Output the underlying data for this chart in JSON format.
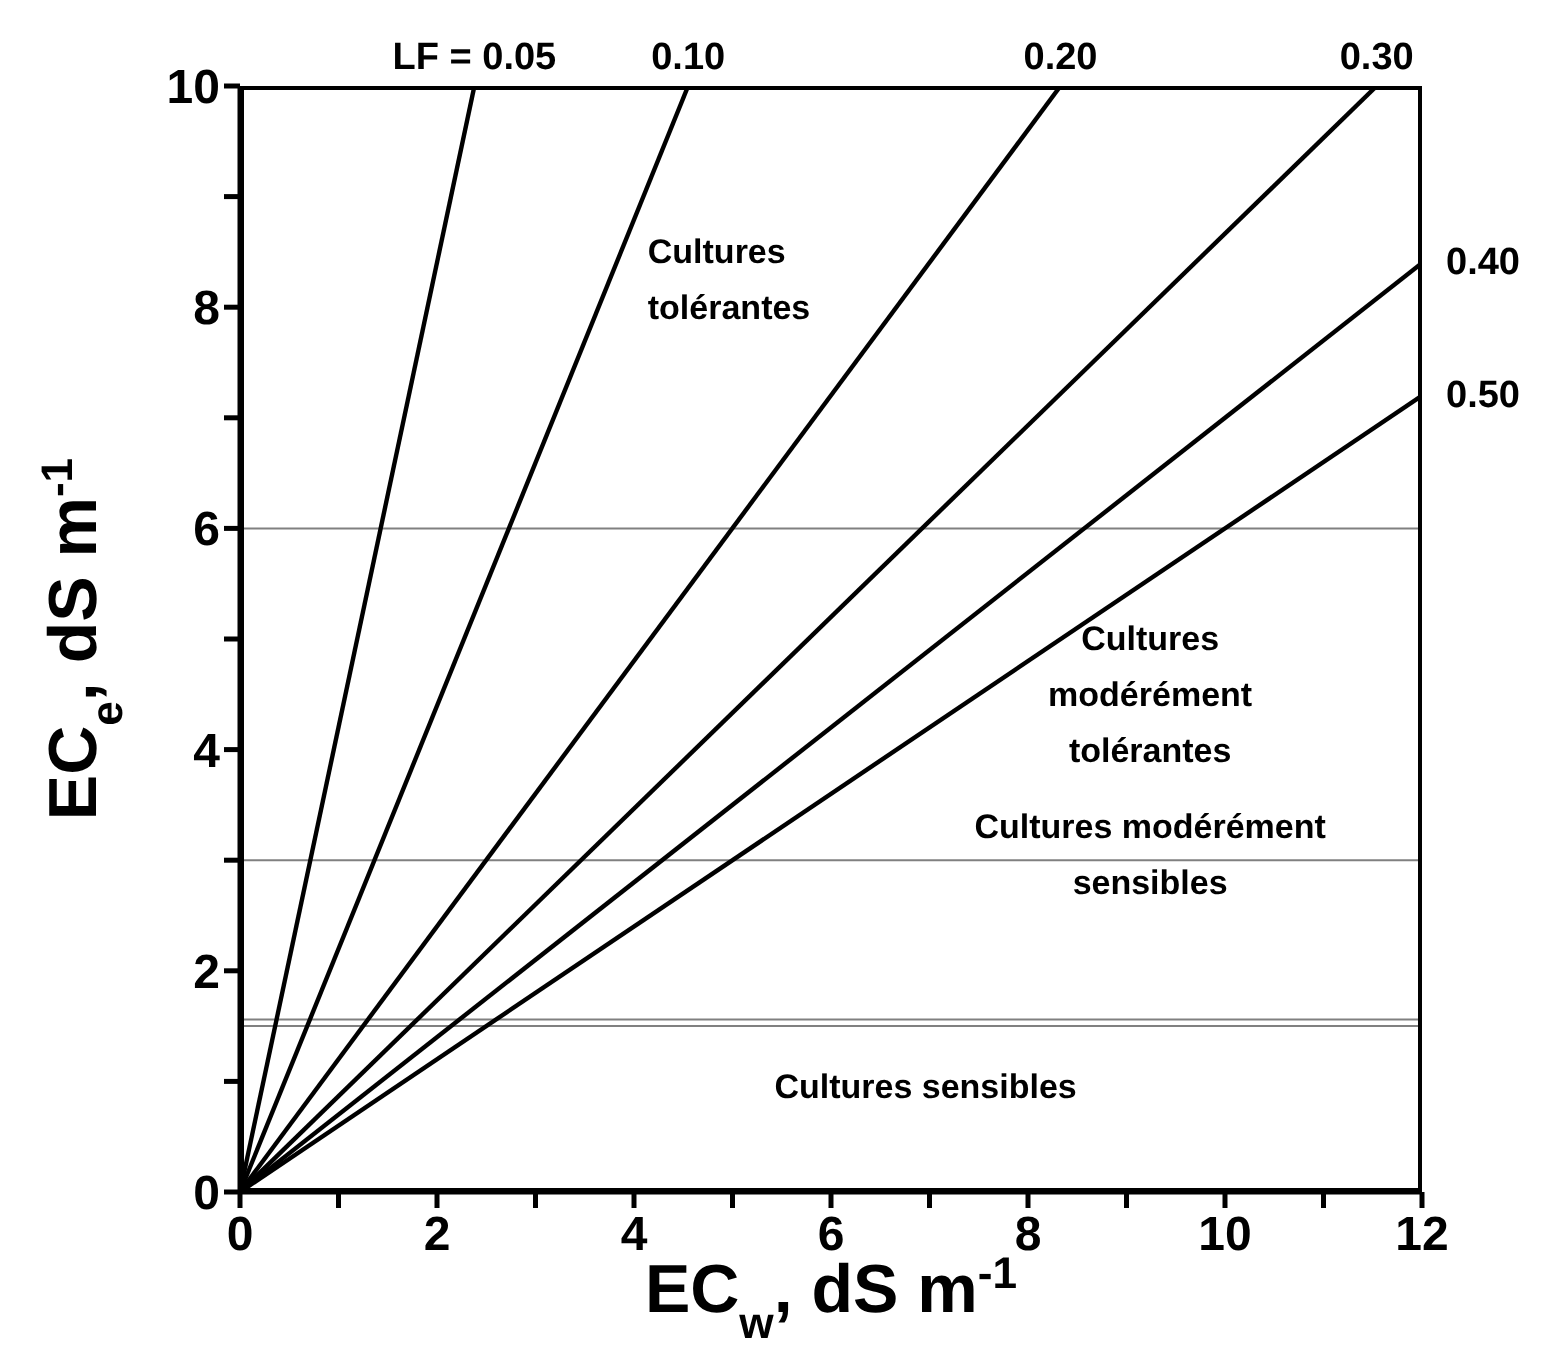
{
  "chart_data": {
    "type": "line",
    "xlabel": "EC$_{w}$, dS m$^{-1}$",
    "ylabel": "EC$_{e}$, dS m$^{-1}$",
    "xlim": [
      0,
      12
    ],
    "ylim": [
      0,
      10
    ],
    "xticks": [
      0,
      {
        "value": 1,
        "label": null
      },
      2,
      {
        "value": 3,
        "label": null
      },
      4,
      {
        "value": 5,
        "label": null
      },
      6,
      {
        "value": 7,
        "label": null
      },
      8,
      {
        "value": 9,
        "label": null
      },
      10,
      {
        "value": 11,
        "label": null
      },
      12
    ],
    "yticks": [
      0,
      {
        "value": 1,
        "label": null
      },
      2,
      {
        "value": 3,
        "label": null
      },
      4,
      {
        "value": 5,
        "label": null
      },
      6,
      {
        "value": 7,
        "label": null
      },
      8,
      {
        "value": 9,
        "label": null
      },
      10
    ],
    "marker": "none",
    "line_style": "solid",
    "series": [
      {
        "name": "LF = 0.05",
        "color": "#000000",
        "x": [
          0,
          2.38
        ],
        "values": [
          0,
          10
        ]
      },
      {
        "name": "0.10",
        "color": "#000000",
        "x": [
          0,
          4.55
        ],
        "values": [
          0,
          10
        ]
      },
      {
        "name": "0.20",
        "color": "#000000",
        "x": [
          0,
          8.33
        ],
        "values": [
          0,
          10
        ]
      },
      {
        "name": "0.30",
        "color": "#000000",
        "x": [
          0,
          11.54
        ],
        "values": [
          0,
          10
        ]
      },
      {
        "name": "0.40",
        "color": "#000000",
        "x": [
          0,
          12
        ],
        "values": [
          0,
          8.4
        ]
      },
      {
        "name": "0.50",
        "color": "#000000",
        "x": [
          0,
          12
        ],
        "values": [
          0,
          7.2
        ]
      }
    ],
    "ref_lines": [
      {
        "axis": "y",
        "value": 6,
        "color": "#808080"
      },
      {
        "axis": "y",
        "value": 3,
        "color": "#808080"
      },
      {
        "axis": "y",
        "value": 1.56,
        "color": "#808080"
      },
      {
        "axis": "y",
        "value": 1.5,
        "color": "#808080"
      }
    ],
    "annotations": [
      "Cultures tolérantes",
      "Cultures modérément tolérantes",
      "Cultures modérément sensibles",
      "Cultures sensibles"
    ]
  }
}
